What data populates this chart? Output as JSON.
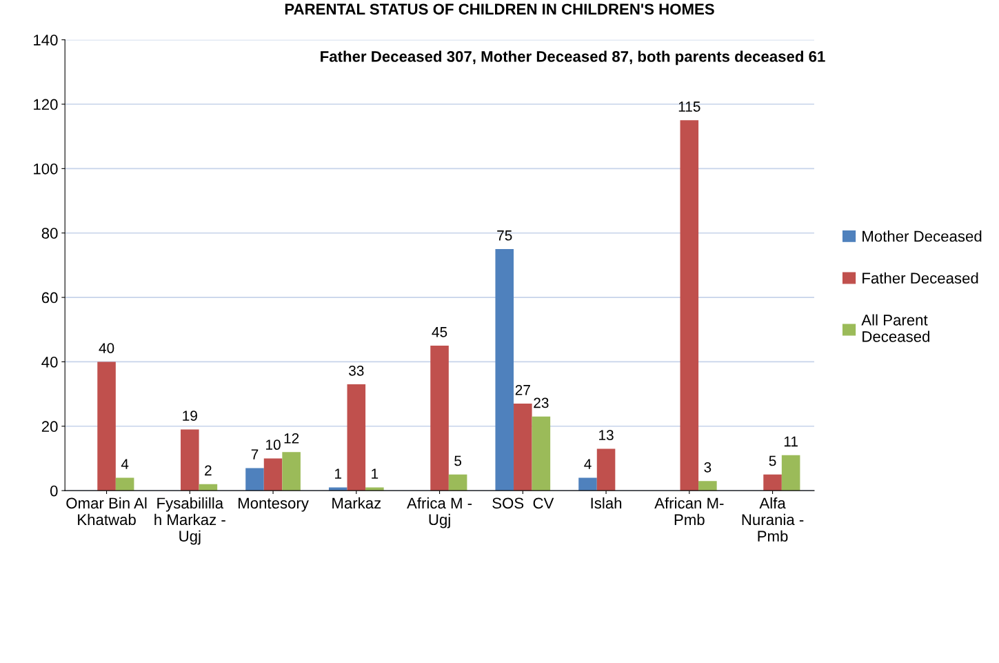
{
  "chart_data": {
    "type": "bar",
    "title": "PARENTAL STATUS OF CHILDREN IN CHILDREN'S HOMES",
    "annotations": [
      "Father Deceased 307, Mother Deceased 87, both parents deceased 61"
    ],
    "categories": [
      "Omar Bin Al Khatwab",
      "Fysabilillah Markaz - Ugj",
      "Montesory",
      "Markaz",
      "Africa M - Ugj",
      "SOS  CV",
      "Islah",
      "African M- Pmb",
      "Alfa Nurania - Pmb"
    ],
    "series": [
      {
        "name": "Mother Deceased",
        "color": "#4f81bd",
        "values": [
          null,
          null,
          7,
          1,
          null,
          75,
          4,
          null,
          null
        ]
      },
      {
        "name": "Father Deceased",
        "color": "#c0504d",
        "values": [
          40,
          19,
          10,
          33,
          45,
          27,
          13,
          115,
          5
        ]
      },
      {
        "name": "All Parent Deceased",
        "color": "#9bbb59",
        "values": [
          4,
          2,
          12,
          1,
          5,
          23,
          null,
          3,
          11
        ]
      }
    ],
    "ylim": [
      0,
      140
    ],
    "yticks": [
      0,
      20,
      40,
      60,
      80,
      100,
      120,
      140
    ],
    "grid": "y",
    "legend": "right",
    "data_labels": true
  }
}
